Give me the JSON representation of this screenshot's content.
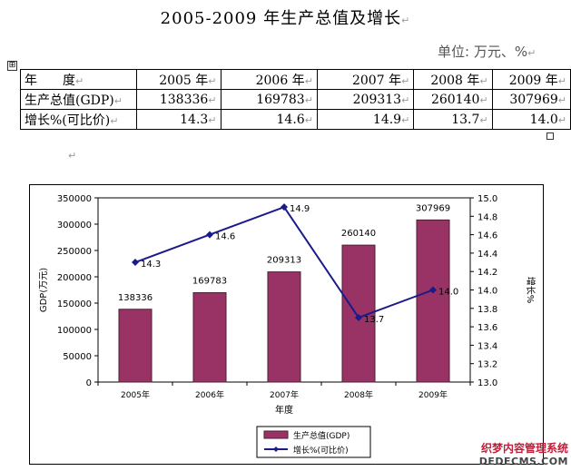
{
  "document": {
    "title": "2005-2009 年生产总值及增长",
    "unit_label": "单位: 万元、%",
    "paragraph_mark": "↵",
    "table_handle": "⊞"
  },
  "table": {
    "rows": [
      [
        "年　　度",
        "2005 年",
        "2006 年",
        "2007 年",
        "2008 年",
        "2009 年"
      ],
      [
        "生产总值(GDP)",
        "138336",
        "169783",
        "209313",
        "260140",
        "307969"
      ],
      [
        "增长%(可比价)",
        "14.3",
        "14.6",
        "14.9",
        "13.7",
        "14.0"
      ]
    ]
  },
  "chart_data": {
    "type": "bar",
    "categories": [
      "2005年",
      "2006年",
      "2007年",
      "2008年",
      "2009年"
    ],
    "series": [
      {
        "name": "生产总值(GDP)",
        "type": "bar",
        "axis": "left",
        "values": [
          138336,
          169783,
          209313,
          260140,
          307969
        ],
        "labels": [
          "138336",
          "169783",
          "209313",
          "260140",
          "307969"
        ]
      },
      {
        "name": "增长%(可比价)",
        "type": "line",
        "axis": "right",
        "values": [
          14.3,
          14.6,
          14.9,
          13.7,
          14.0
        ],
        "labels": [
          "14.3",
          "14.6",
          "14.9",
          "13.7",
          "14.0"
        ]
      }
    ],
    "xlabel": "年度",
    "ylabel": "GDP(万元)",
    "ylabel_right": "增长%",
    "ylim": [
      0,
      350000
    ],
    "yticks": [
      "0",
      "50000",
      "100000",
      "150000",
      "200000",
      "250000",
      "300000",
      "350000"
    ],
    "ylim_right": [
      13.0,
      15.0
    ],
    "yticks_right": [
      "13.0",
      "13.2",
      "13.4",
      "13.6",
      "13.8",
      "14.0",
      "14.2",
      "14.4",
      "14.6",
      "14.8",
      "15.0"
    ],
    "legend": [
      "生产总值(GDP)",
      "增长%(可比价)"
    ],
    "legend_position": "bottom",
    "colors": {
      "bar": "#993366",
      "bar_edge": "#4a1f33",
      "line": "#1a1a8c"
    }
  },
  "watermark": {
    "line1": "织梦内容管理系统",
    "line2": "DEDECMS.COM"
  }
}
